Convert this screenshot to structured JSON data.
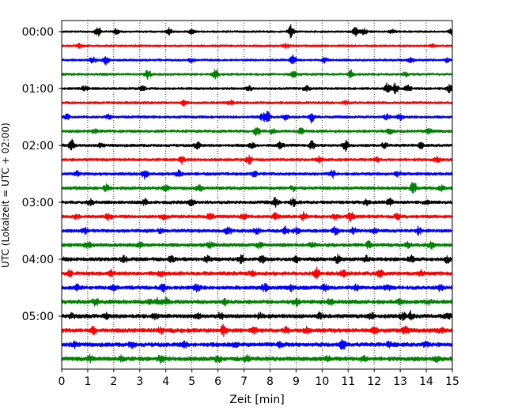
{
  "chart_data": {
    "type": "line",
    "chart_kind": "helicorder seismogram",
    "xlabel": "Zeit  [min]",
    "ylabel": "UTC (Lokalzeit = UTC + 02:00)",
    "xlim": [
      0,
      15
    ],
    "x_ticks": [
      "0",
      "1",
      "2",
      "3",
      "4",
      "5",
      "6",
      "7",
      "8",
      "9",
      "10",
      "11",
      "12",
      "13",
      "14",
      "15"
    ],
    "y_tick_labels": [
      "00:00",
      "01:00",
      "02:00",
      "03:00",
      "04:00",
      "05:00"
    ],
    "minutes_per_trace": 15,
    "trace_colors": [
      "#000000",
      "#ff0000",
      "#0000ff",
      "#008000"
    ],
    "vertical_grid": "dotted",
    "traces": [
      {
        "start": "00:00",
        "color": "#000000",
        "events": [
          [
            1.4,
            1.4
          ],
          [
            2.1,
            0.7
          ],
          [
            4.1,
            1.0
          ],
          [
            5.0,
            0.6
          ],
          [
            8.8,
            1.6
          ],
          [
            11.3,
            1.5
          ],
          [
            11.6,
            0.8
          ],
          [
            12.7,
            0.6
          ],
          [
            15.0,
            0.8
          ]
        ]
      },
      {
        "start": "00:15",
        "color": "#ff0000",
        "events": [
          [
            0.7,
            0.5
          ],
          [
            8.6,
            0.6
          ],
          [
            14.2,
            0.5
          ]
        ]
      },
      {
        "start": "00:30",
        "color": "#0000ff",
        "events": [
          [
            1.2,
            0.8
          ],
          [
            1.7,
            1.0
          ],
          [
            5.0,
            0.5
          ],
          [
            8.9,
            1.3
          ],
          [
            10.1,
            0.6
          ],
          [
            13.4,
            0.6
          ],
          [
            14.8,
            0.5
          ]
        ]
      },
      {
        "start": "00:45",
        "color": "#008000",
        "events": [
          [
            3.3,
            1.1
          ],
          [
            5.9,
            1.3
          ],
          [
            8.9,
            0.7
          ],
          [
            11.1,
            1.2
          ],
          [
            13.2,
            0.6
          ]
        ]
      },
      {
        "start": "01:00",
        "color": "#000000",
        "events": [
          [
            0.9,
            0.6
          ],
          [
            3.1,
            0.7
          ],
          [
            7.2,
            0.6
          ],
          [
            9.4,
            0.8
          ],
          [
            12.5,
            1.5
          ],
          [
            12.8,
            1.4
          ],
          [
            13.3,
            1.0
          ],
          [
            14.9,
            1.1
          ]
        ]
      },
      {
        "start": "01:15",
        "color": "#ff0000",
        "events": [
          [
            4.7,
            0.6
          ],
          [
            6.5,
            0.5
          ],
          [
            10.9,
            0.5
          ]
        ]
      },
      {
        "start": "01:30",
        "color": "#0000ff",
        "events": [
          [
            0.2,
            0.6
          ],
          [
            1.8,
            0.5
          ],
          [
            7.7,
            0.7
          ],
          [
            7.9,
            1.4
          ],
          [
            8.6,
            0.7
          ],
          [
            9.6,
            1.4
          ],
          [
            12.5,
            0.6
          ],
          [
            13.0,
            0.7
          ]
        ]
      },
      {
        "start": "01:45",
        "color": "#008000",
        "events": [
          [
            1.3,
            0.5
          ],
          [
            7.5,
            1.2
          ],
          [
            8.1,
            0.6
          ],
          [
            9.2,
            0.7
          ],
          [
            12.6,
            0.6
          ],
          [
            14.1,
            0.5
          ]
        ]
      },
      {
        "start": "02:00",
        "color": "#000000",
        "events": [
          [
            0.4,
            1.2
          ],
          [
            1.5,
            0.5
          ],
          [
            5.2,
            1.0
          ],
          [
            7.3,
            0.6
          ],
          [
            8.4,
            1.0
          ],
          [
            9.6,
            1.0
          ],
          [
            10.9,
            1.2
          ],
          [
            12.4,
            0.7
          ],
          [
            13.8,
            0.6
          ]
        ]
      },
      {
        "start": "02:15",
        "color": "#ff0000",
        "events": [
          [
            4.6,
            1.0
          ],
          [
            7.2,
            1.1
          ],
          [
            9.9,
            0.7
          ],
          [
            12.1,
            0.6
          ],
          [
            14.4,
            0.6
          ]
        ]
      },
      {
        "start": "02:30",
        "color": "#0000ff",
        "events": [
          [
            0.6,
            0.6
          ],
          [
            3.2,
            1.1
          ],
          [
            4.5,
            0.8
          ],
          [
            7.4,
            0.6
          ],
          [
            10.4,
            0.9
          ],
          [
            12.9,
            0.6
          ]
        ]
      },
      {
        "start": "02:45",
        "color": "#008000",
        "events": [
          [
            1.7,
            0.8
          ],
          [
            4.0,
            0.6
          ],
          [
            5.3,
            0.8
          ],
          [
            8.9,
            0.6
          ],
          [
            13.5,
            1.7
          ],
          [
            14.6,
            0.6
          ]
        ]
      },
      {
        "start": "03:00",
        "color": "#000000",
        "events": [
          [
            1.1,
            0.7
          ],
          [
            3.2,
            0.6
          ],
          [
            5.0,
            1.0
          ],
          [
            8.2,
            1.1
          ],
          [
            8.9,
            0.9
          ],
          [
            11.7,
            0.6
          ],
          [
            12.6,
            0.9
          ],
          [
            14.0,
            0.6
          ]
        ]
      },
      {
        "start": "03:15",
        "color": "#ff0000",
        "events": [
          [
            0.6,
            0.6
          ],
          [
            1.8,
            0.8
          ],
          [
            3.9,
            0.7
          ],
          [
            5.7,
            0.8
          ],
          [
            7.0,
            0.7
          ],
          [
            8.2,
            0.7
          ],
          [
            9.3,
            1.0
          ],
          [
            10.5,
            0.6
          ],
          [
            11.1,
            1.2
          ],
          [
            12.9,
            0.6
          ]
        ]
      },
      {
        "start": "03:30",
        "color": "#0000ff",
        "events": [
          [
            0.9,
            0.7
          ],
          [
            3.8,
            0.6
          ],
          [
            6.4,
            1.0
          ],
          [
            7.5,
            0.8
          ],
          [
            8.6,
            0.8
          ],
          [
            9.0,
            0.7
          ],
          [
            10.5,
            1.0
          ],
          [
            11.2,
            0.8
          ],
          [
            12.0,
            0.6
          ],
          [
            13.7,
            0.9
          ]
        ]
      },
      {
        "start": "03:45",
        "color": "#008000",
        "events": [
          [
            1.0,
            0.8
          ],
          [
            3.0,
            0.6
          ],
          [
            5.7,
            0.8
          ],
          [
            7.6,
            0.7
          ],
          [
            9.6,
            0.6
          ],
          [
            11.8,
            0.9
          ],
          [
            13.3,
            0.7
          ],
          [
            14.2,
            0.8
          ]
        ]
      },
      {
        "start": "04:00",
        "color": "#000000",
        "events": [
          [
            0.2,
            0.6
          ],
          [
            2.4,
            0.8
          ],
          [
            4.2,
            0.7
          ],
          [
            5.6,
            0.6
          ],
          [
            6.9,
            1.0
          ],
          [
            7.7,
            0.8
          ],
          [
            9.0,
            0.8
          ],
          [
            10.6,
            0.9
          ],
          [
            11.7,
            0.7
          ],
          [
            13.4,
            0.9
          ],
          [
            14.8,
            0.8
          ]
        ]
      },
      {
        "start": "04:15",
        "color": "#ff0000",
        "events": [
          [
            0.3,
            0.7
          ],
          [
            1.9,
            0.6
          ],
          [
            3.8,
            0.6
          ],
          [
            7.3,
            0.6
          ],
          [
            9.8,
            1.3
          ],
          [
            10.8,
            0.8
          ],
          [
            12.2,
            0.9
          ],
          [
            13.8,
            0.6
          ]
        ]
      },
      {
        "start": "04:30",
        "color": "#0000ff",
        "events": [
          [
            0.6,
            0.6
          ],
          [
            2.0,
            0.6
          ],
          [
            3.9,
            0.7
          ],
          [
            5.2,
            0.8
          ],
          [
            7.8,
            0.9
          ],
          [
            8.8,
            0.7
          ],
          [
            10.1,
            0.8
          ],
          [
            11.3,
            0.6
          ],
          [
            12.5,
            0.6
          ],
          [
            14.5,
            0.8
          ]
        ]
      },
      {
        "start": "04:45",
        "color": "#008000",
        "events": [
          [
            1.3,
            0.8
          ],
          [
            3.4,
            0.7
          ],
          [
            3.7,
            0.8
          ],
          [
            4.0,
            0.9
          ],
          [
            6.3,
            0.7
          ],
          [
            9.0,
            0.8
          ],
          [
            10.3,
            0.7
          ],
          [
            13.0,
            0.7
          ],
          [
            14.1,
            0.6
          ]
        ]
      },
      {
        "start": "05:00",
        "color": "#000000",
        "events": [
          [
            0.4,
            0.6
          ],
          [
            1.7,
            0.8
          ],
          [
            3.6,
            0.7
          ],
          [
            5.2,
            0.7
          ],
          [
            6.1,
            0.8
          ],
          [
            7.6,
            0.7
          ],
          [
            9.9,
            0.7
          ],
          [
            11.9,
            0.7
          ],
          [
            13.1,
            0.8
          ],
          [
            13.4,
            1.0
          ],
          [
            14.8,
            0.7
          ]
        ]
      },
      {
        "start": "05:15",
        "color": "#ff0000",
        "events": [
          [
            1.2,
            0.8
          ],
          [
            3.8,
            0.6
          ],
          [
            6.2,
            1.3
          ],
          [
            7.4,
            0.6
          ],
          [
            8.6,
            0.6
          ],
          [
            9.4,
            0.7
          ],
          [
            12.0,
            0.7
          ],
          [
            13.2,
            0.7
          ],
          [
            14.6,
            0.6
          ]
        ]
      },
      {
        "start": "05:30",
        "color": "#0000ff",
        "events": [
          [
            0.5,
            0.6
          ],
          [
            2.7,
            0.6
          ],
          [
            4.7,
            0.7
          ],
          [
            6.7,
            0.8
          ],
          [
            8.4,
            0.7
          ],
          [
            10.8,
            1.2
          ],
          [
            12.6,
            0.6
          ],
          [
            14.0,
            0.6
          ]
        ]
      },
      {
        "start": "05:45",
        "color": "#008000",
        "events": [
          [
            1.1,
            0.7
          ],
          [
            2.3,
            0.6
          ],
          [
            3.8,
            0.8
          ],
          [
            6.0,
            0.7
          ],
          [
            7.1,
            0.7
          ],
          [
            10.2,
            0.6
          ],
          [
            11.6,
            0.7
          ],
          [
            14.4,
            0.6
          ]
        ]
      }
    ]
  }
}
